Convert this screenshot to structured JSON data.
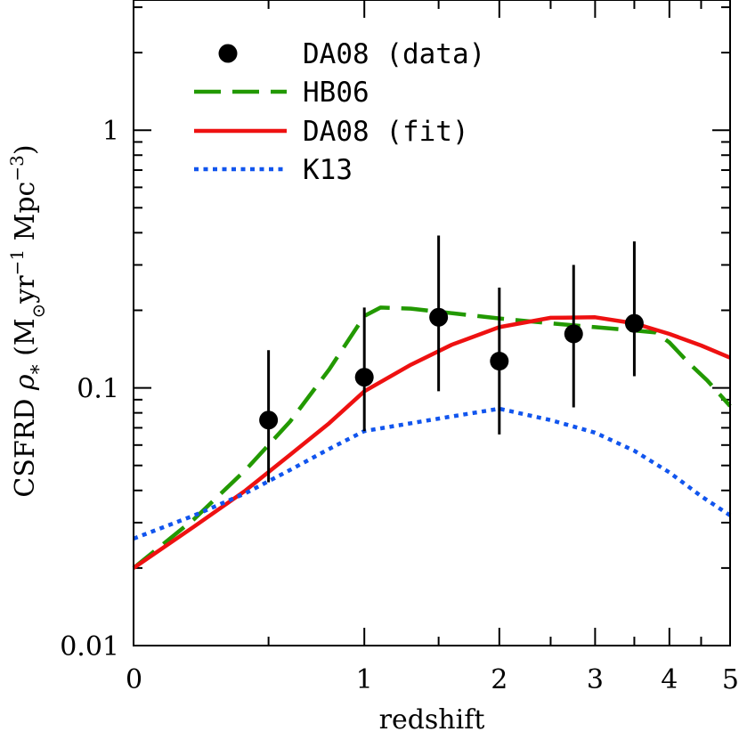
{
  "chart_data": {
    "type": "line",
    "xlabel": "redshift",
    "ylabel": {
      "prefix": "CSFRD ",
      "symbol": "ρ",
      "sub": "*",
      "units_open": " (M",
      "units_sun": "⊙",
      "units_mid": "yr",
      "units_exp1": "−1",
      "units_mid2": " Mpc",
      "units_exp2": "−3",
      "units_close": ")"
    },
    "x_scale": "log(1+z)",
    "y_scale": "log",
    "xlim": [
      0,
      5
    ],
    "ylim": [
      0.01,
      3.2
    ],
    "x_ticks": [
      {
        "value": 0,
        "label": "0"
      },
      {
        "value": 1,
        "label": "1"
      },
      {
        "value": 2,
        "label": "2"
      },
      {
        "value": 3,
        "label": "3"
      },
      {
        "value": 4,
        "label": "4"
      },
      {
        "value": 5,
        "label": "5"
      }
    ],
    "y_ticks": [
      {
        "value": 0.01,
        "label": "0.01"
      },
      {
        "value": 0.1,
        "label": "0.1"
      },
      {
        "value": 1,
        "label": "1"
      }
    ],
    "legend_position": "top",
    "data_points": {
      "name": "DA08 (data)",
      "color": "#000000",
      "points": [
        {
          "x": 0.5,
          "y": 0.075,
          "y_low": 0.043,
          "y_high": 0.14
        },
        {
          "x": 1.0,
          "y": 0.11,
          "y_low": 0.068,
          "y_high": 0.205
        },
        {
          "x": 1.5,
          "y": 0.188,
          "y_low": 0.097,
          "y_high": 0.39
        },
        {
          "x": 2.0,
          "y": 0.127,
          "y_low": 0.066,
          "y_high": 0.245
        },
        {
          "x": 2.75,
          "y": 0.162,
          "y_low": 0.084,
          "y_high": 0.3
        },
        {
          "x": 3.5,
          "y": 0.178,
          "y_low": 0.111,
          "y_high": 0.37
        }
      ]
    },
    "series": [
      {
        "name": "HB06",
        "color": "#229900",
        "dash": "dashed",
        "x": [
          0,
          0.2,
          0.4,
          0.6,
          0.8,
          1.0,
          1.1,
          1.3,
          1.6,
          2.0,
          2.5,
          3.0,
          3.5,
          3.8,
          4.0,
          4.3,
          4.6,
          5.0
        ],
        "y": [
          0.02,
          0.031,
          0.048,
          0.074,
          0.118,
          0.19,
          0.205,
          0.203,
          0.195,
          0.186,
          0.178,
          0.172,
          0.167,
          0.164,
          0.15,
          0.125,
          0.107,
          0.085
        ]
      },
      {
        "name": "DA08 (fit)",
        "color": "#ee1111",
        "dash": "solid",
        "x": [
          0,
          0.2,
          0.4,
          0.6,
          0.8,
          1.0,
          1.3,
          1.6,
          2.0,
          2.5,
          3.0,
          3.5,
          4.0,
          4.5,
          5.0
        ],
        "y": [
          0.02,
          0.029,
          0.04,
          0.055,
          0.073,
          0.097,
          0.123,
          0.147,
          0.172,
          0.187,
          0.188,
          0.178,
          0.162,
          0.146,
          0.131
        ]
      },
      {
        "name": "K13",
        "color": "#1155ee",
        "dash": "dotted",
        "x": [
          0,
          0.2,
          0.4,
          0.6,
          0.8,
          1.0,
          1.5,
          2.0,
          2.5,
          3.0,
          3.5,
          4.0,
          4.5,
          5.0
        ],
        "y": [
          0.026,
          0.032,
          0.039,
          0.048,
          0.058,
          0.068,
          0.076,
          0.083,
          0.075,
          0.067,
          0.057,
          0.047,
          0.038,
          0.032
        ]
      }
    ]
  }
}
